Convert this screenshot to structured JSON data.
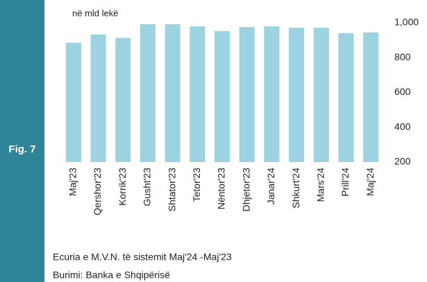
{
  "chart_data": {
    "type": "bar",
    "figure_label": "Fig. 7",
    "unit_label": "në mld lekë",
    "caption": "Ecuria e M.V.N. të sistemit Maj'24 -Maj'23",
    "source": "Burimi: Banka e Shqipërisë",
    "categories": [
      "Maj'23",
      "Qershor'23",
      "Korrik'23",
      "Gusht'23",
      "Shtator'23",
      "Tetor'23",
      "Nëntor'23",
      "Dhjetor'23",
      "Janar'24",
      "Shkurt'24",
      "Mars'24",
      "Prill'24",
      "Maj'24"
    ],
    "values": [
      886,
      933,
      914,
      992,
      992,
      980,
      953,
      976,
      980,
      972,
      972,
      941,
      945
    ],
    "color": "#9dd3e0",
    "ylim": [
      200,
      1000
    ],
    "yticks": [
      200,
      400,
      600,
      800,
      {
        "value": 1000,
        "label": "1,000"
      }
    ],
    "grid": false
  }
}
